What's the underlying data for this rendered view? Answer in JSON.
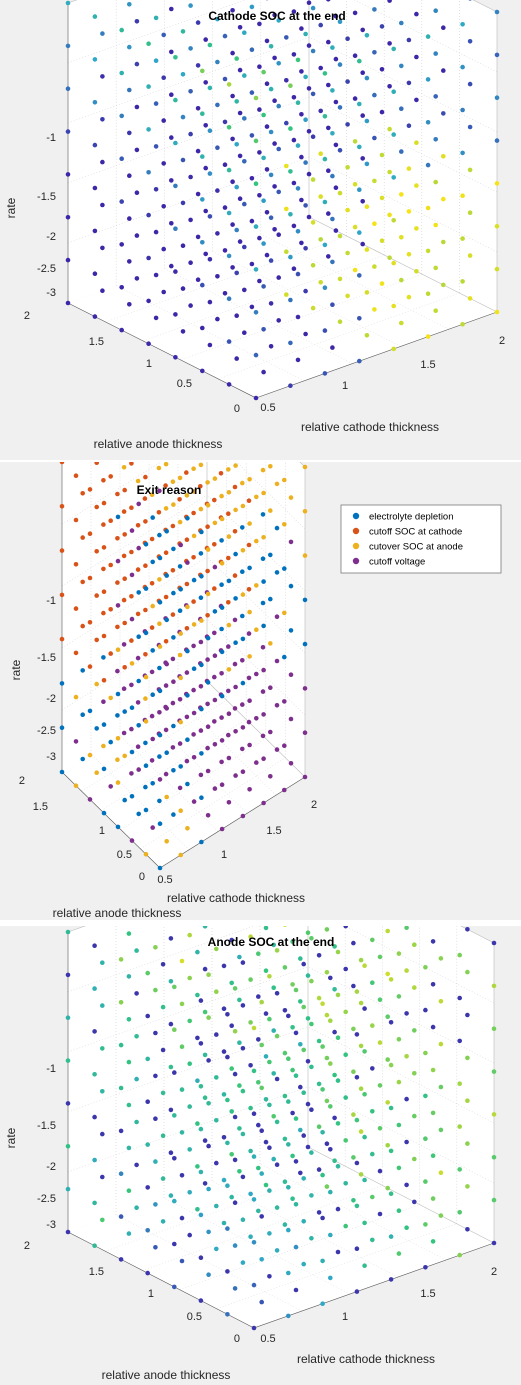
{
  "chart_data": [
    {
      "id": "p1",
      "type": "scatter",
      "title": "Cathode SOC at the end",
      "xlabel": "relative cathode thickness",
      "ylabel": "relative anode thickness",
      "zlabel": "rate",
      "x_ticks": [
        "0.5",
        "1",
        "1.5",
        "2"
      ],
      "y_ticks": [
        "0",
        "0.5",
        "1",
        "1.5",
        "2"
      ],
      "z_ticks": [
        "-1",
        "-1.5",
        "-2",
        "-2.5",
        "-3"
      ],
      "xlim": [
        0.5,
        2
      ],
      "ylim": [
        0,
        2
      ],
      "zlim": [
        -3.2,
        -0.6
      ],
      "grid": true,
      "colormap": "parula",
      "colors": {
        "dark": "#3e26a8",
        "mid": "#2fa7c9",
        "light": "#33c47e",
        "yellow": "#f7e316"
      }
    },
    {
      "id": "p2",
      "type": "scatter",
      "title": "Exit reason",
      "xlabel": "relative cathode thickness",
      "ylabel": "relative anode thickness",
      "zlabel": "rate",
      "x_ticks": [
        "0.5",
        "1",
        "1.5",
        "2"
      ],
      "y_ticks": [
        "0",
        "0.5",
        "1",
        "1.5",
        "2"
      ],
      "z_ticks": [
        "-1",
        "-1.5",
        "-2",
        "-2.5",
        "-3"
      ],
      "xlim": [
        0.5,
        2
      ],
      "ylim": [
        0,
        2
      ],
      "zlim": [
        -3.2,
        -0.6
      ],
      "grid": true,
      "legend_position": "top-right",
      "series": [
        {
          "name": "electrolyte depletion",
          "color": "#0072bd"
        },
        {
          "name": "cutoff SOC at cathode",
          "color": "#d95319"
        },
        {
          "name": "cutover SOC at anode",
          "color": "#edb120"
        },
        {
          "name": "cutoff voltage",
          "color": "#7e2f8e"
        }
      ]
    },
    {
      "id": "p3",
      "type": "scatter",
      "title": "Anode SOC at the end",
      "xlabel": "relative cathode thickness",
      "ylabel": "relative anode thickness",
      "zlabel": "rate",
      "x_ticks": [
        "0.5",
        "1",
        "1.5",
        "2"
      ],
      "y_ticks": [
        "0",
        "0.5",
        "1",
        "1.5",
        "2"
      ],
      "z_ticks": [
        "-1",
        "-1.5",
        "-2",
        "-2.5",
        "-3"
      ],
      "xlim": [
        0.5,
        2
      ],
      "ylim": [
        0,
        2
      ],
      "zlim": [
        -3.2,
        -0.6
      ],
      "grid": true,
      "colormap": "parula",
      "colors": {
        "dark": "#3e26a8",
        "mid": "#2fa7c9",
        "light": "#33c47e",
        "yellow": "#f7e316"
      }
    }
  ]
}
